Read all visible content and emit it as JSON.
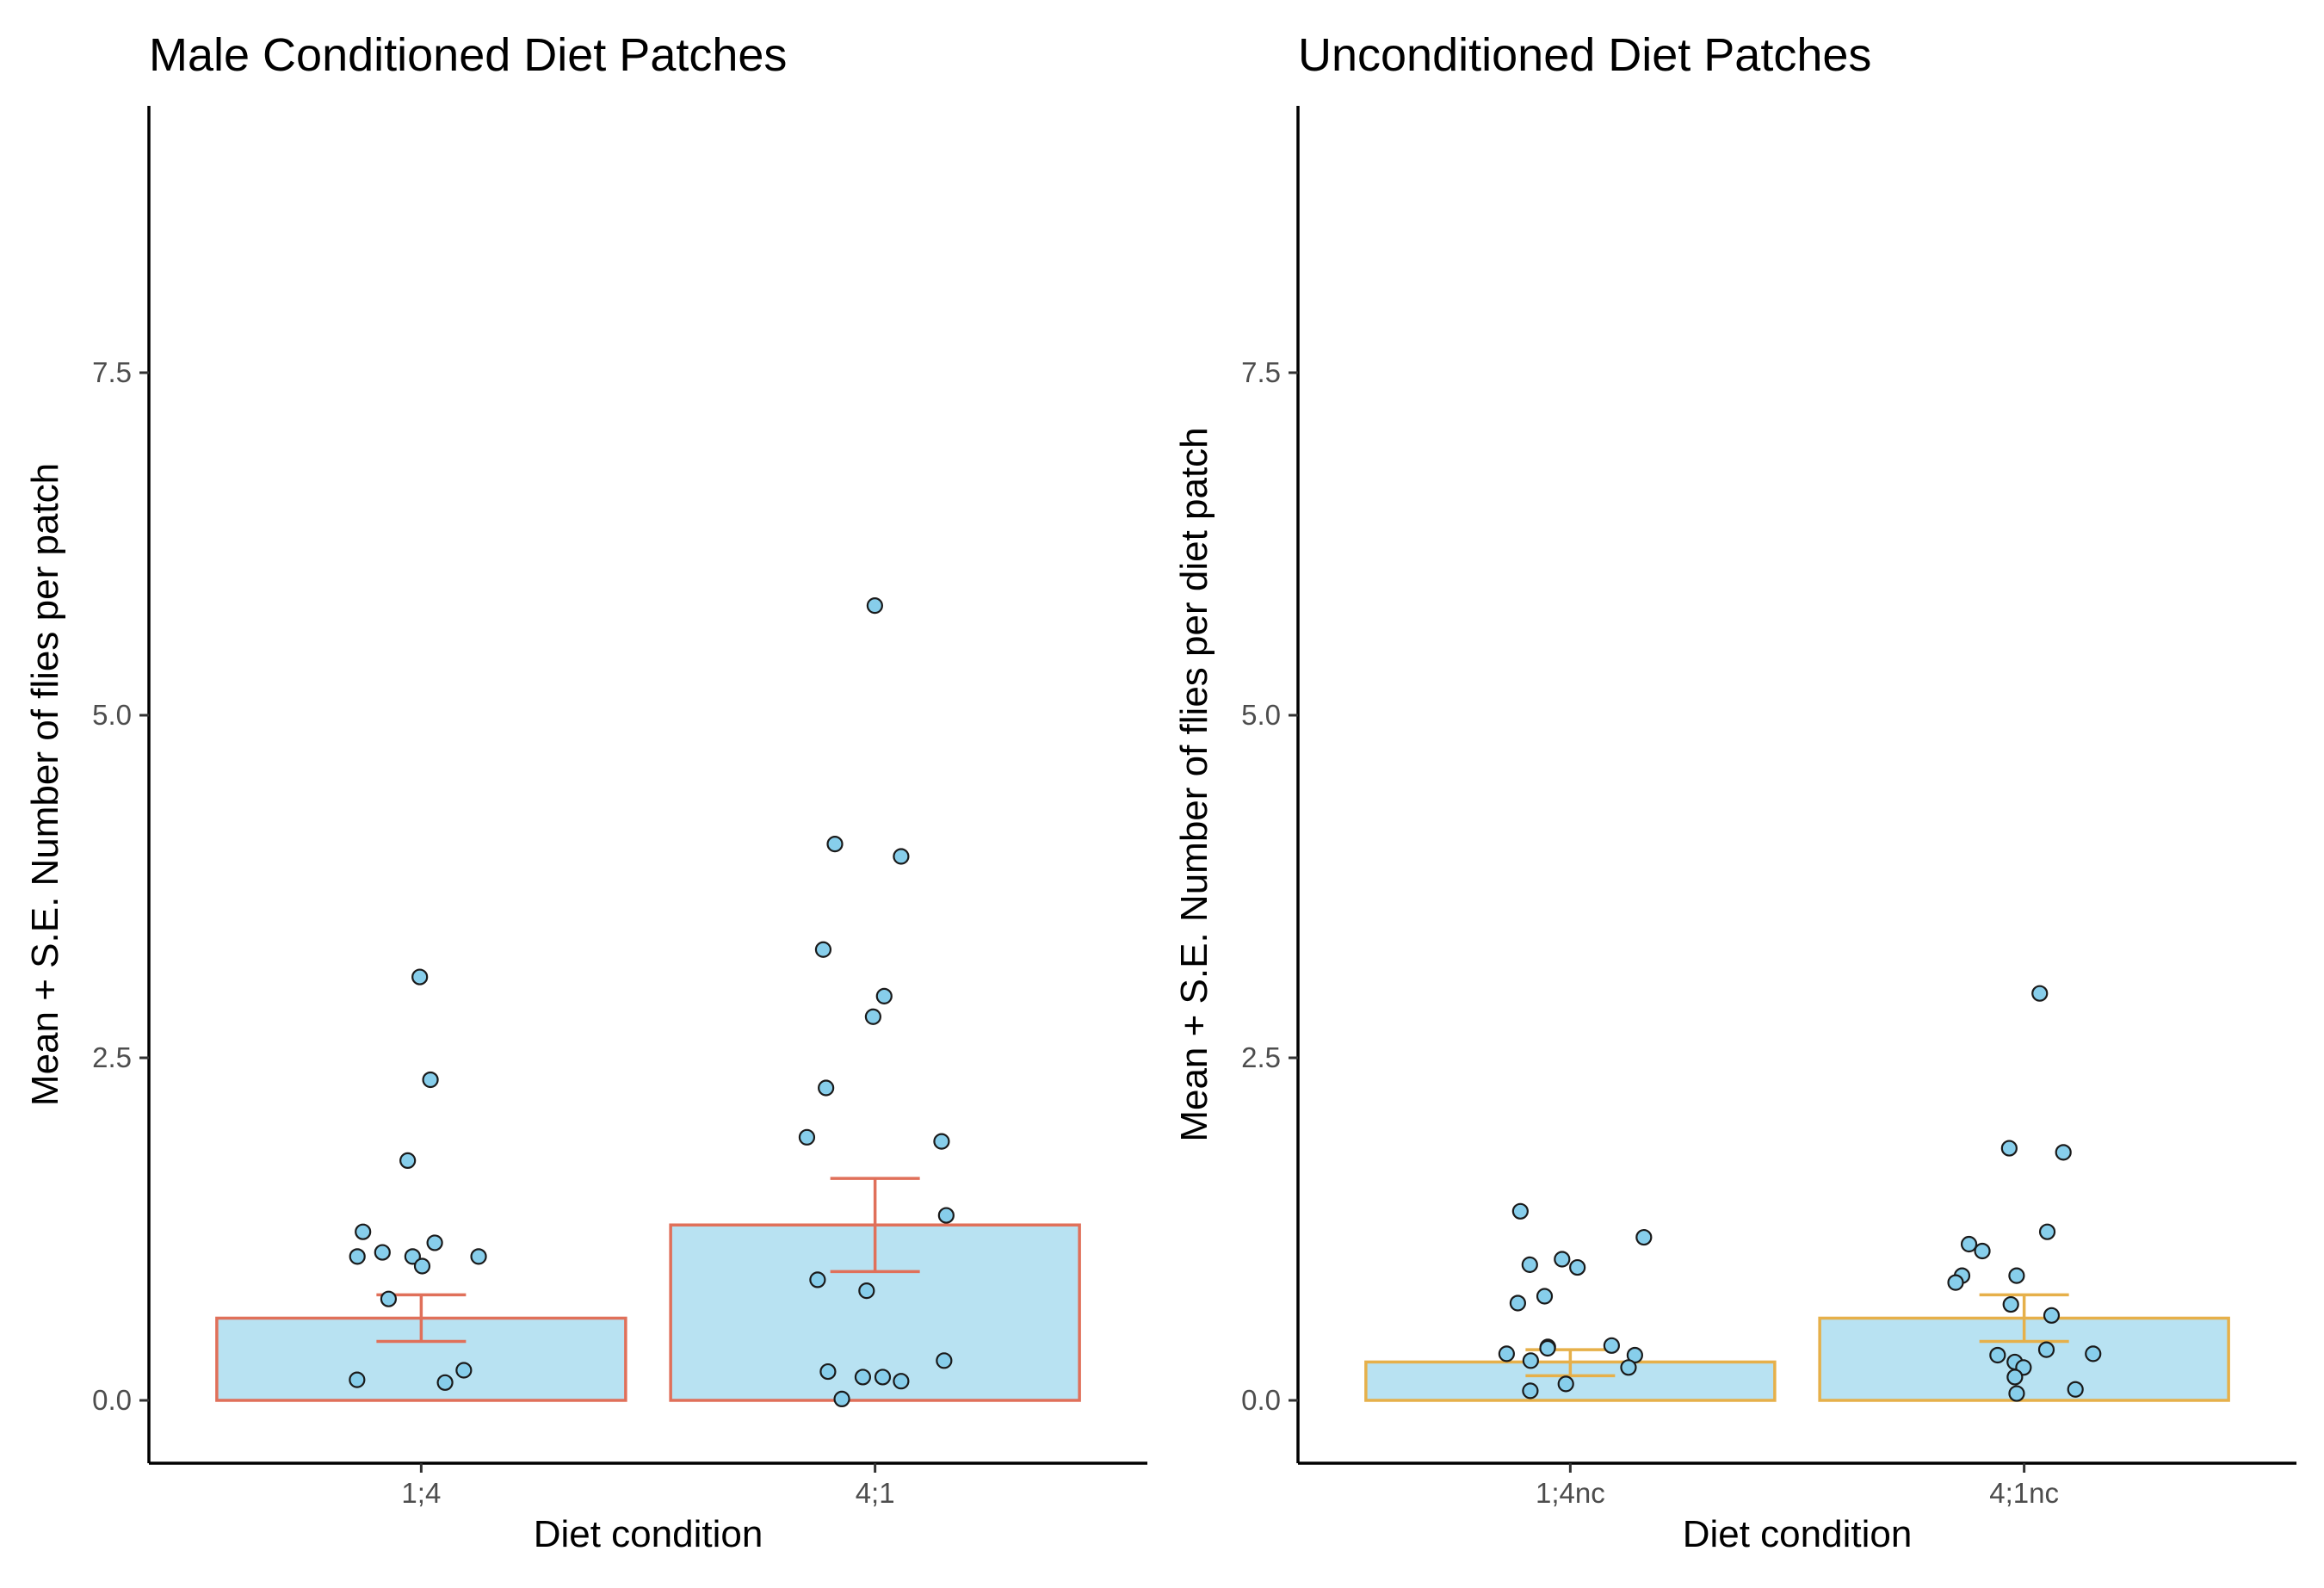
{
  "chart_data": [
    {
      "type": "bar",
      "title": "Male Conditioned Diet Patches",
      "xlabel": "Diet condition",
      "ylabel": "Mean + S.E. Number of flies per patch",
      "ylim": [
        -0.45,
        9.4
      ],
      "yticks": [
        0.0,
        2.5,
        5.0,
        7.5
      ],
      "ytick_labels": [
        "0.0",
        "2.5",
        "5.0",
        "7.5"
      ],
      "categories": [
        "1;4",
        "4;1"
      ],
      "values": [
        0.6,
        1.28
      ],
      "se_lower": [
        0.43,
        0.94
      ],
      "se_upper": [
        0.77,
        1.62
      ],
      "bar_fill": "#b8e2f2",
      "bar_stroke": "#e0705a",
      "points": [
        {
          "category": "1;4",
          "values": [
            3.09,
            2.34,
            1.23,
            1.08,
            1.05,
            0.98,
            1.05,
            1.05,
            1.15,
            1.75,
            0.74,
            0.22,
            0.13,
            0.15
          ]
        },
        {
          "category": "4;1",
          "values": [
            5.8,
            4.06,
            3.97,
            3.29,
            2.95,
            2.8,
            2.28,
            1.92,
            1.89,
            1.35,
            0.88,
            0.8,
            0.29,
            0.21,
            0.17,
            0.17,
            0.14,
            0.01
          ]
        }
      ],
      "grid": false,
      "legend": "none"
    },
    {
      "type": "bar",
      "title": "Unconditioned Diet Patches",
      "xlabel": "Diet condition",
      "ylabel": "Mean + S.E. Number of flies per diet patch",
      "ylim": [
        -0.45,
        9.4
      ],
      "yticks": [
        0.0,
        2.5,
        5.0,
        7.5
      ],
      "ytick_labels": [
        "0.0",
        "2.5",
        "5.0",
        "7.5"
      ],
      "categories": [
        "1;4nc",
        "4;1nc"
      ],
      "values": [
        0.28,
        0.6
      ],
      "se_lower": [
        0.18,
        0.43
      ],
      "se_upper": [
        0.37,
        0.77
      ],
      "bar_fill": "#b8e2f2",
      "bar_stroke": "#e6b04a",
      "points": [
        {
          "category": "1;4nc",
          "values": [
            1.38,
            1.19,
            1.03,
            0.99,
            0.97,
            0.76,
            0.71,
            0.4,
            0.39,
            0.38,
            0.34,
            0.33,
            0.29,
            0.24,
            0.12,
            0.07
          ]
        },
        {
          "category": "4;1nc",
          "values": [
            2.97,
            1.84,
            1.81,
            1.23,
            1.14,
            1.09,
            0.91,
            0.91,
            0.86,
            0.7,
            0.62,
            0.37,
            0.34,
            0.33,
            0.28,
            0.24,
            0.17,
            0.08,
            0.05
          ]
        }
      ],
      "grid": false,
      "legend": "none"
    }
  ]
}
